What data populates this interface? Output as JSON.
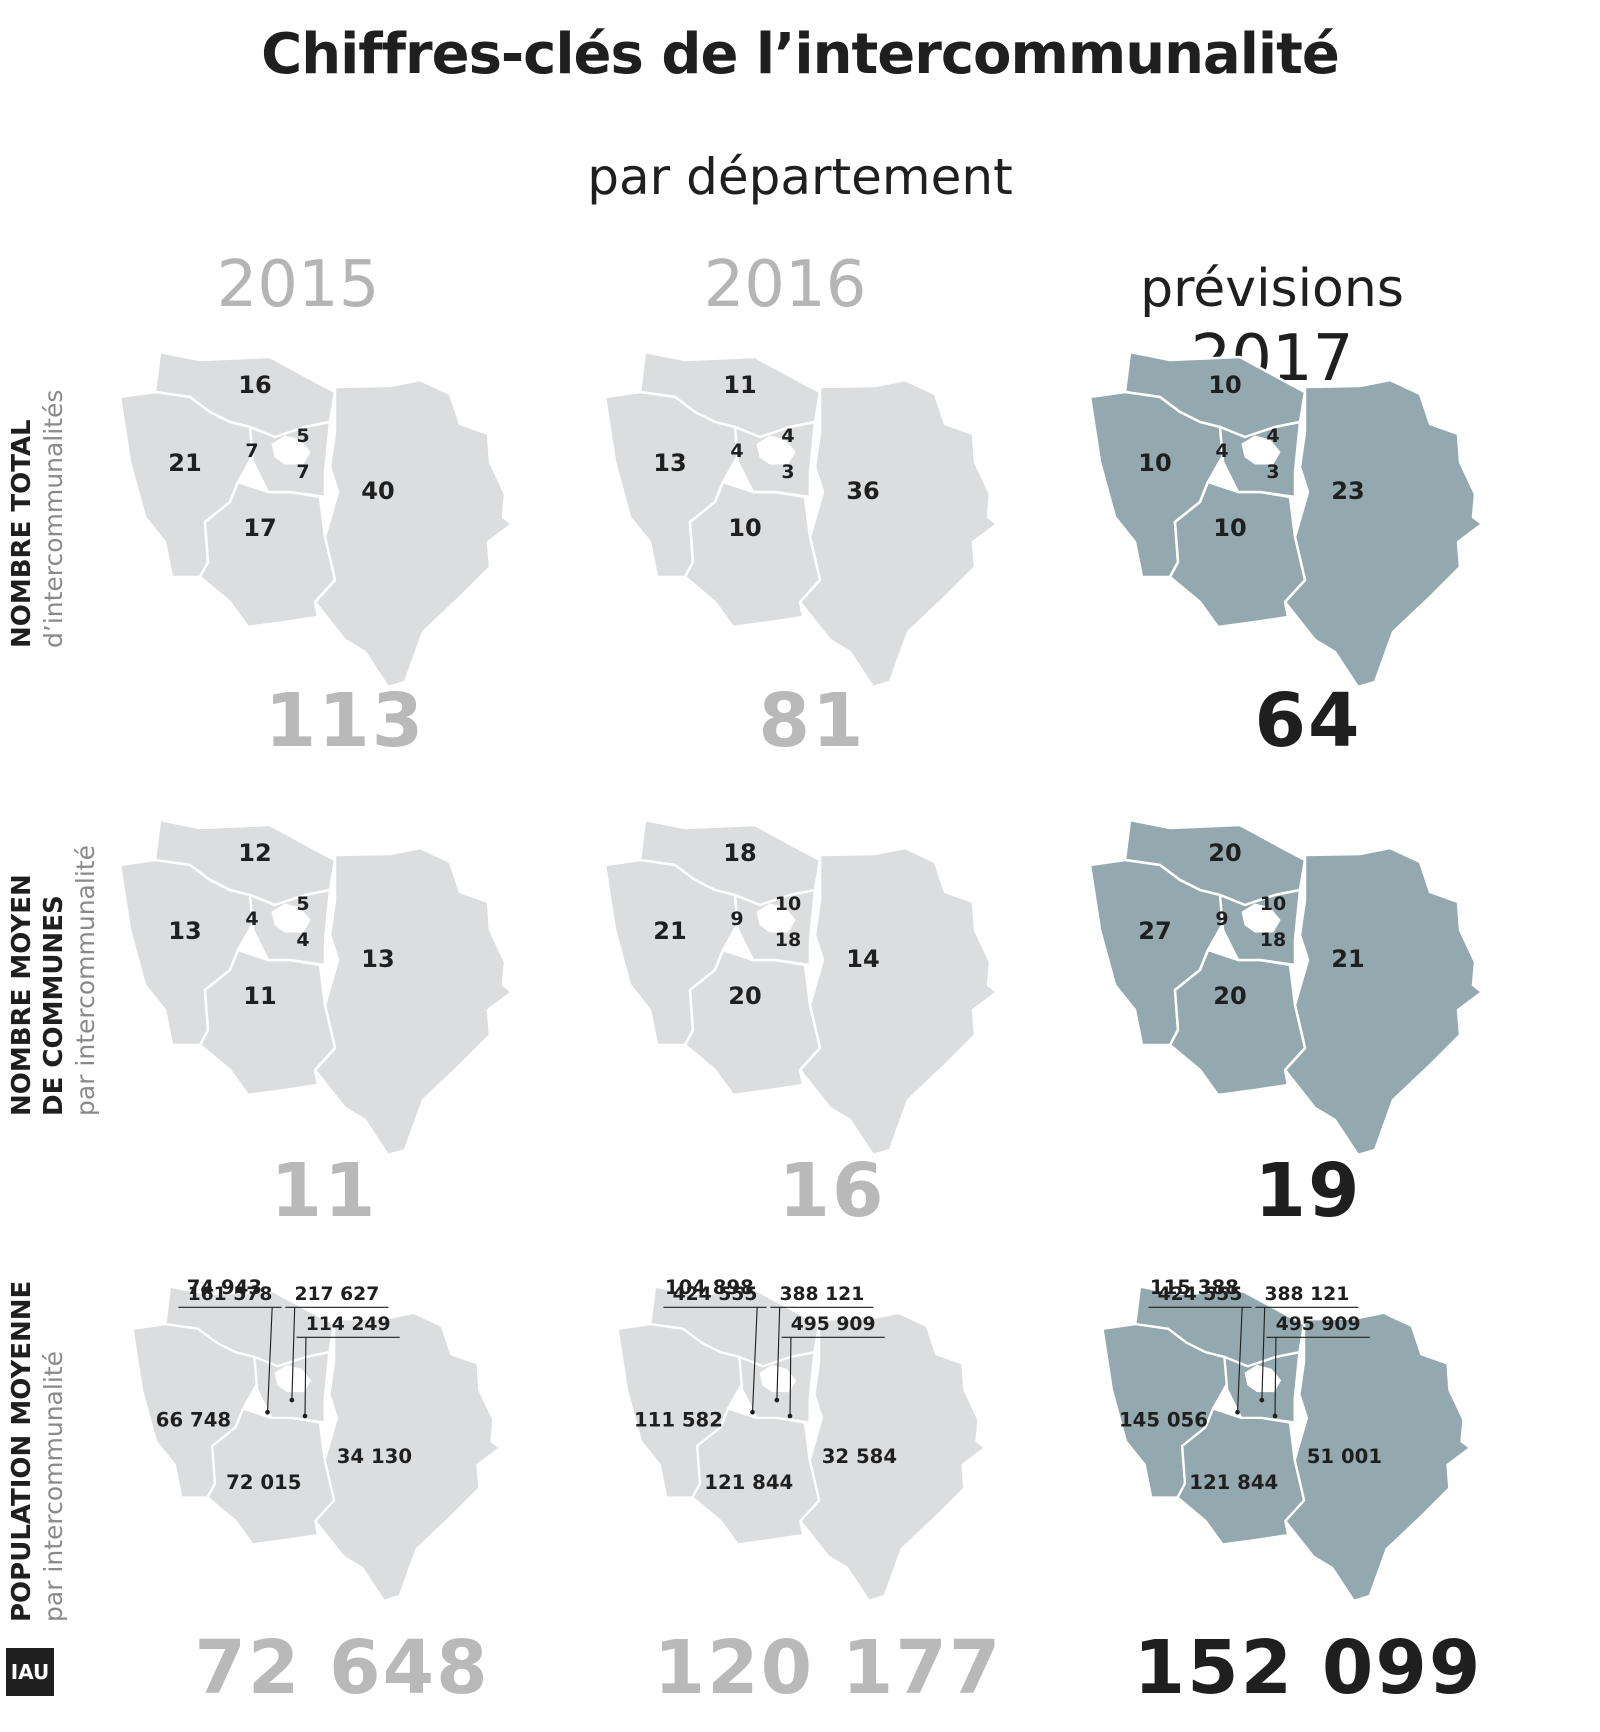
{
  "title": "Chiffres-clés de l’intercommunalité",
  "subtitle": "par département",
  "colors": {
    "past_fill": "#dcddde",
    "current_fill": "#93a8af",
    "past_total": "#b9b9b9",
    "current_total": "#1f1f1f"
  },
  "columns": [
    {
      "prefix": "",
      "year": "2015"
    },
    {
      "prefix": "",
      "year": "2016"
    },
    {
      "prefix": "prévisions",
      "year": "2017"
    }
  ],
  "row_labels": [
    {
      "strong": [
        "NOMBRE TOTAL"
      ],
      "light": "d’intercommunalités"
    },
    {
      "strong": [
        "NOMBRE MOYEN",
        "DE COMMUNES"
      ],
      "light": "par intercommunalité"
    },
    {
      "strong": [
        "POPULATION MOYENNE"
      ],
      "light": "par intercommunalité"
    }
  ],
  "rows": [
    {
      "maps": [
        {
          "nord": "16",
          "ouest": "21",
          "sud": "17",
          "est": "40",
          "centre_o": "7",
          "centre_ne": "5",
          "centre_se": "7"
        },
        {
          "nord": "11",
          "ouest": "13",
          "sud": "10",
          "est": "36",
          "centre_o": "4",
          "centre_ne": "4",
          "centre_se": "3"
        },
        {
          "nord": "10",
          "ouest": "10",
          "sud": "10",
          "est": "23",
          "centre_o": "4",
          "centre_ne": "4",
          "centre_se": "3"
        }
      ],
      "totals": [
        "113",
        "81",
        "64"
      ]
    },
    {
      "maps": [
        {
          "nord": "12",
          "ouest": "13",
          "sud": "11",
          "est": "13",
          "centre_o": "4",
          "centre_ne": "5",
          "centre_se": "4"
        },
        {
          "nord": "18",
          "ouest": "21",
          "sud": "20",
          "est": "14",
          "centre_o": "9",
          "centre_ne": "10",
          "centre_se": "18"
        },
        {
          "nord": "20",
          "ouest": "27",
          "sud": "20",
          "est": "21",
          "centre_o": "9",
          "centre_ne": "10",
          "centre_se": "18"
        }
      ],
      "totals": [
        "11",
        "16",
        "19"
      ]
    },
    {
      "maps": [
        {
          "nord": "74 943",
          "ouest": "66 748",
          "sud": "72 015",
          "est": "34 130",
          "centre_o": "161 578",
          "centre_ne": "217 627",
          "centre_se": "114 249"
        },
        {
          "nord": "104 898",
          "ouest": "111 582",
          "sud": "121 844",
          "est": "32 584",
          "centre_o": "424 555",
          "centre_ne": "388 121",
          "centre_se": "495 909"
        },
        {
          "nord": "115 388",
          "ouest": "145 056",
          "sud": "121 844",
          "est": "51 001",
          "centre_o": "424 555",
          "centre_ne": "388 121",
          "centre_se": "495 909"
        }
      ],
      "totals": [
        "72 648",
        "120 177",
        "152 099"
      ]
    }
  ],
  "logo": "IAU"
}
